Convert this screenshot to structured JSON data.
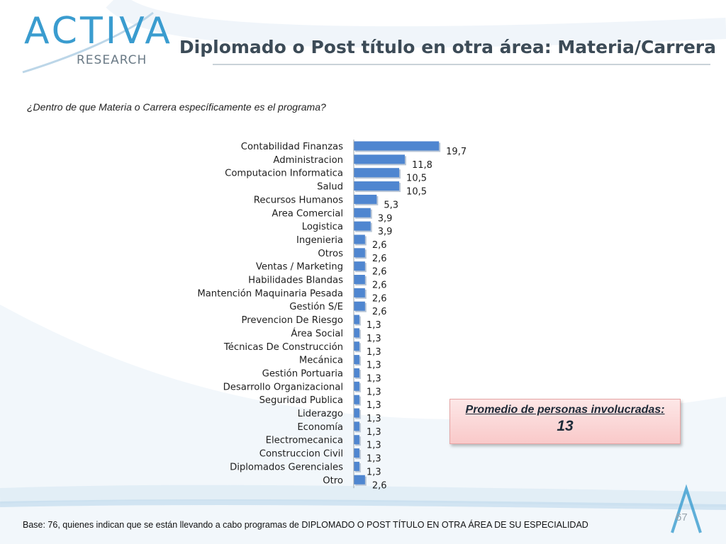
{
  "header": {
    "logo_word": "ACTIVA",
    "logo_sub": "RESEARCH",
    "title": "Diplomado o Post título en otra área: Materia/Carrera",
    "question": "¿Dentro de que Materia o Carrera específicamente es el programa?"
  },
  "callout": {
    "title": "Promedio de personas involucradas:",
    "value": "13"
  },
  "footer": {
    "base": "Base: 76, quienes indican que se están llevando a cabo programas de DIPLOMADO O POST TÍTULO EN OTRA ÁREA DE SU ESPECIALIDAD",
    "page": "67"
  },
  "colors": {
    "bar": "#4f86d0",
    "title": "#3c4b57",
    "logo": "#3a9ccf"
  },
  "chart_data": {
    "type": "bar",
    "orientation": "horizontal",
    "categories": [
      "Contabilidad Finanzas",
      "Administracion",
      "Computacion Informatica",
      "Salud",
      "Recursos Humanos",
      "Area Comercial",
      "Logistica",
      "Ingenieria",
      "Otros",
      "Ventas / Marketing",
      "Habilidades Blandas",
      "Mantención Maquinaria Pesada",
      "Gestión S/E",
      "Prevencion De Riesgo",
      "Área Social",
      "Técnicas De Construcción",
      "Mecánica",
      "Gestión Portuaria",
      "Desarrollo Organizacional",
      "Seguridad Publica",
      "Liderazgo",
      "Economía",
      "Electromecanica",
      "Construccion Civil",
      "Diplomados Gerenciales",
      "Otro"
    ],
    "values": [
      19.7,
      11.8,
      10.5,
      10.5,
      5.3,
      3.9,
      3.9,
      2.6,
      2.6,
      2.6,
      2.6,
      2.6,
      2.6,
      1.3,
      1.3,
      1.3,
      1.3,
      1.3,
      1.3,
      1.3,
      1.3,
      1.3,
      1.3,
      1.3,
      1.3,
      2.6
    ],
    "value_labels": [
      "19,7",
      "11,8",
      "10,5",
      "10,5",
      "5,3",
      "3,9",
      "3,9",
      "2,6",
      "2,6",
      "2,6",
      "2,6",
      "2,6",
      "2,6",
      "1,3",
      "1,3",
      "1,3",
      "1,3",
      "1,3",
      "1,3",
      "1,3",
      "1,3",
      "1,3",
      "1,3",
      "1,3",
      "1,3",
      "2,6"
    ],
    "xlim": [
      0,
      20
    ],
    "grid": false,
    "legend": "none"
  }
}
